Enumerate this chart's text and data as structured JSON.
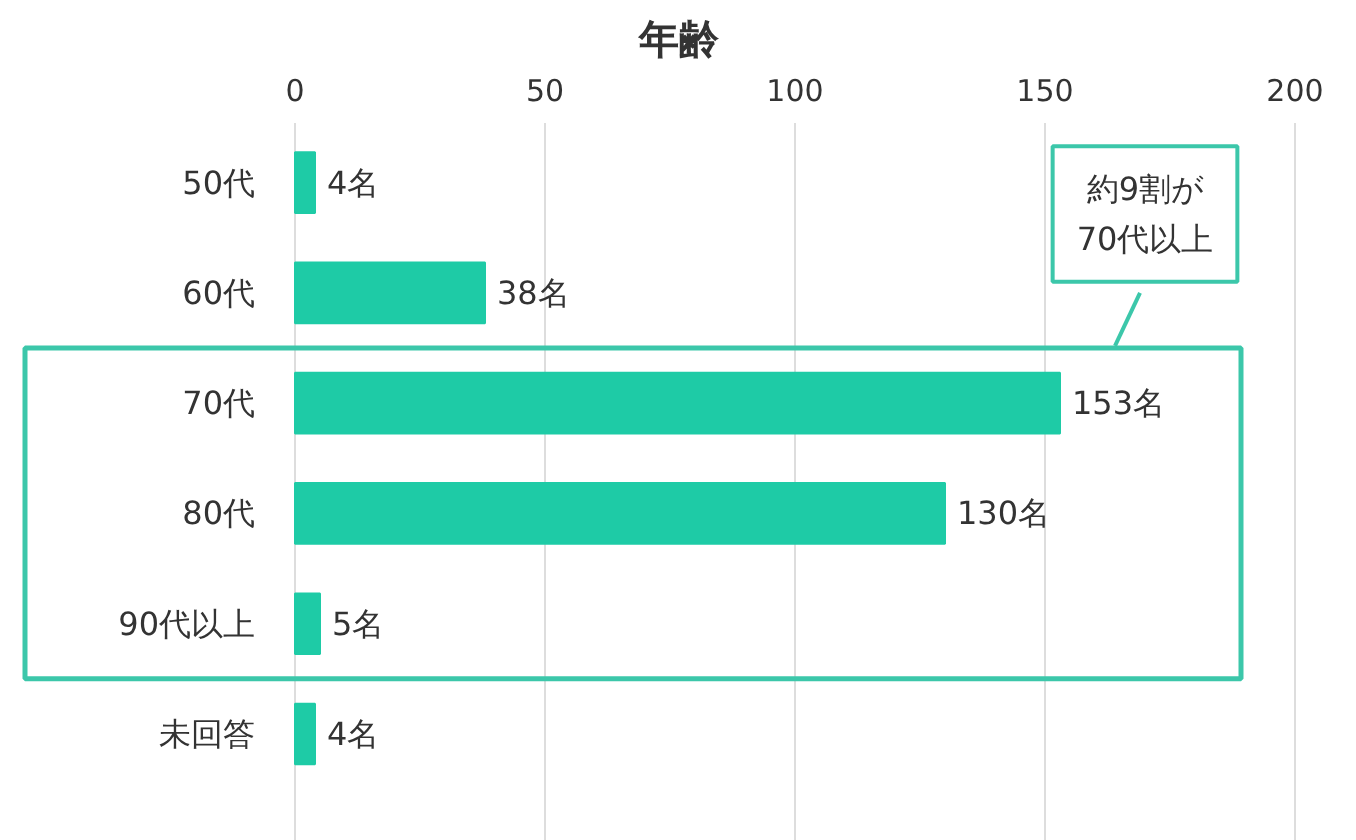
{
  "chart_data": {
    "type": "bar",
    "orientation": "horizontal",
    "title": "年齢",
    "categories": [
      "50代",
      "60代",
      "70代",
      "80代",
      "90代以上",
      "未回答"
    ],
    "values": [
      4,
      38,
      153,
      130,
      5,
      4
    ],
    "value_labels": [
      "4名",
      "38名",
      "153名",
      "130名",
      "5名",
      "4名"
    ],
    "color": "#1ecba6",
    "xlim": [
      0,
      200
    ],
    "xticks": [
      0,
      50,
      100,
      150,
      200
    ],
    "grid": "x",
    "annotations": [
      "約9割が\n70代以上"
    ]
  }
}
